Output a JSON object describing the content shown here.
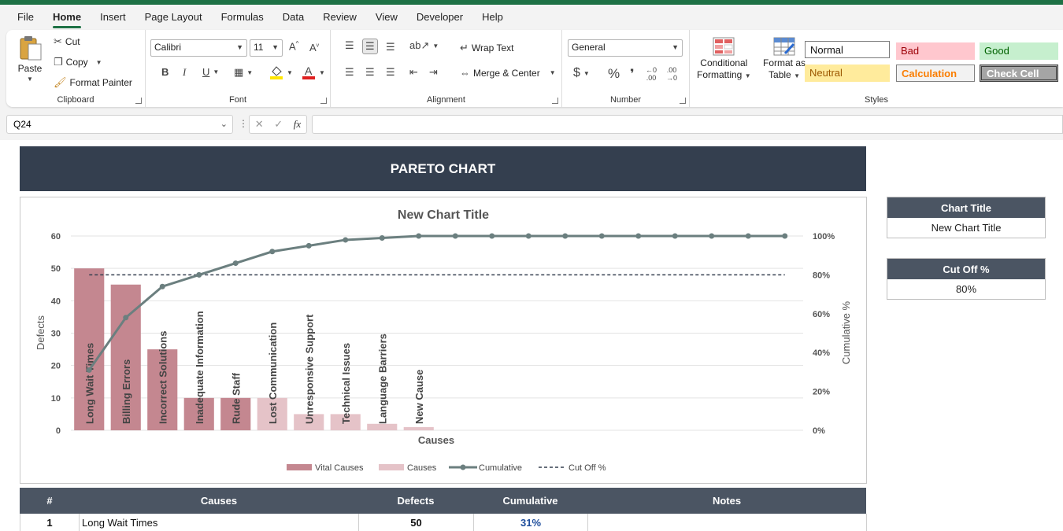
{
  "menu": [
    "File",
    "Home",
    "Insert",
    "Page Layout",
    "Formulas",
    "Data",
    "Review",
    "View",
    "Developer",
    "Help"
  ],
  "active_menu": "Home",
  "clipboard": {
    "paste": "Paste",
    "cut": "Cut",
    "copy": "Copy",
    "format_painter": "Format Painter",
    "label": "Clipboard"
  },
  "font": {
    "name": "Calibri",
    "size": "11",
    "label": "Font"
  },
  "alignment": {
    "wrap_text": "Wrap Text",
    "merge_center": "Merge & Center",
    "label": "Alignment"
  },
  "number": {
    "format": "General",
    "label": "Number"
  },
  "styles": {
    "conditional_line1": "Conditional",
    "conditional_line2": "Formatting",
    "format_table_line1": "Format as",
    "format_table_line2": "Table",
    "normal": "Normal",
    "bad": "Bad",
    "good": "Good",
    "neutral": "Neutral",
    "calculation": "Calculation",
    "check_cell": "Check Cell",
    "label": "Styles"
  },
  "name_box": "Q24",
  "banner_title": "PARETO CHART",
  "chart_data": {
    "type": "bar",
    "title": "New Chart Title",
    "xlabel": "Causes",
    "ylabel": "Defects",
    "y2label": "Cumulative %",
    "ylim": [
      0,
      60
    ],
    "y_ticks": [
      "0",
      "10",
      "20",
      "30",
      "40",
      "50",
      "60"
    ],
    "y2_ticks": [
      "0%",
      "20%",
      "40%",
      "60%",
      "80%",
      "100%"
    ],
    "categories": [
      "Long Wait Times",
      "Billing Errors",
      "Incorrect Solutions",
      "Inadequate Information",
      "Rude Staff",
      "Lost Communication",
      "Unresponsive Support",
      "Technical Issues",
      "Language Barriers",
      "New Cause",
      "",
      "",
      "",
      "",
      "",
      "",
      "",
      "",
      "",
      ""
    ],
    "values": [
      50,
      45,
      25,
      10,
      10,
      10,
      5,
      5,
      2,
      1,
      0,
      0,
      0,
      0,
      0,
      0,
      0,
      0,
      0,
      0
    ],
    "vital": [
      true,
      true,
      true,
      true,
      true,
      false,
      false,
      false,
      false,
      false,
      false,
      false,
      false,
      false,
      false,
      false,
      false,
      false,
      false,
      false
    ],
    "cumulative": [
      0.31,
      0.58,
      0.74,
      0.8,
      0.86,
      0.92,
      0.95,
      0.98,
      0.99,
      1.0,
      1.0,
      1.0,
      1.0,
      1.0,
      1.0,
      1.0,
      1.0,
      1.0,
      1.0,
      1.0
    ],
    "cutoff": 0.8,
    "legend": [
      "Vital Causes",
      "Causes",
      "Cumulative",
      "Cut Off %"
    ],
    "legend_position": "bottom",
    "colors": {
      "vital": "#c48790",
      "causes": "#e5c3c8",
      "cumulative": "#6b7f7f",
      "cutoff": "#343f4f"
    }
  },
  "side": {
    "chart_title_label": "Chart Title",
    "chart_title_value": "New Chart Title",
    "cutoff_label": "Cut Off %",
    "cutoff_value": "80%"
  },
  "table": {
    "headers": [
      "#",
      "Causes",
      "Defects",
      "Cumulative",
      "Notes"
    ],
    "rows": [
      {
        "num": "1",
        "cause": "Long Wait Times",
        "defects": "50",
        "cumulative": "31%",
        "notes": ""
      }
    ]
  }
}
